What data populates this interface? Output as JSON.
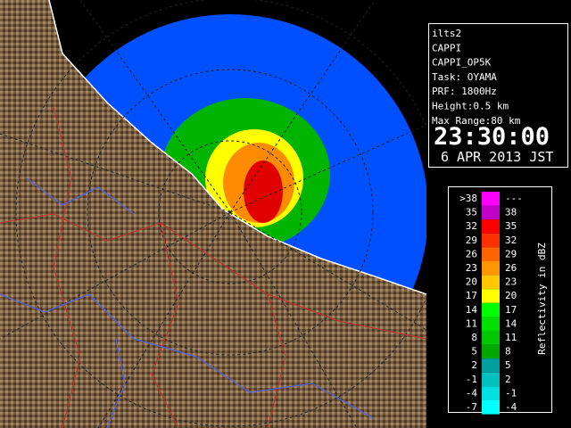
{
  "info": {
    "lines": [
      "ilts2",
      "CAPPI",
      "CAPPI_OP5K",
      "Task: OYAMA",
      "PRF: 1800Hz",
      "Height:0.5 km",
      "Max Range:80 km"
    ],
    "time": "23:30:00",
    "date": "6 APR 2013 JST"
  },
  "legend": {
    "title": "Reflectivity in dBZ",
    "rows": [
      {
        "low": ">38",
        "high": "---",
        "color": "#ff00ff"
      },
      {
        "low": "35",
        "high": "38",
        "color": "#c000c8"
      },
      {
        "low": "32",
        "high": "35",
        "color": "#ff0000"
      },
      {
        "low": "29",
        "high": "32",
        "color": "#ff3000"
      },
      {
        "low": "26",
        "high": "29",
        "color": "#ff6400"
      },
      {
        "low": "23",
        "high": "26",
        "color": "#ff9600"
      },
      {
        "low": "20",
        "high": "23",
        "color": "#ffc800"
      },
      {
        "low": "17",
        "high": "20",
        "color": "#ffff00"
      },
      {
        "low": "14",
        "high": "17",
        "color": "#00ff00"
      },
      {
        "low": "11",
        "high": "14",
        "color": "#00e000"
      },
      {
        "low": "8",
        "high": "11",
        "color": "#00c800"
      },
      {
        "low": "5",
        "high": "8",
        "color": "#00a800"
      },
      {
        "low": "2",
        "high": "5",
        "color": "#00a0a0"
      },
      {
        "low": "-1",
        "high": "2",
        "color": "#00c0c0"
      },
      {
        "low": "-4",
        "high": "-1",
        "color": "#00e0e0"
      },
      {
        "low": "-7",
        "high": "-4",
        "color": "#00ffff"
      }
    ]
  }
}
